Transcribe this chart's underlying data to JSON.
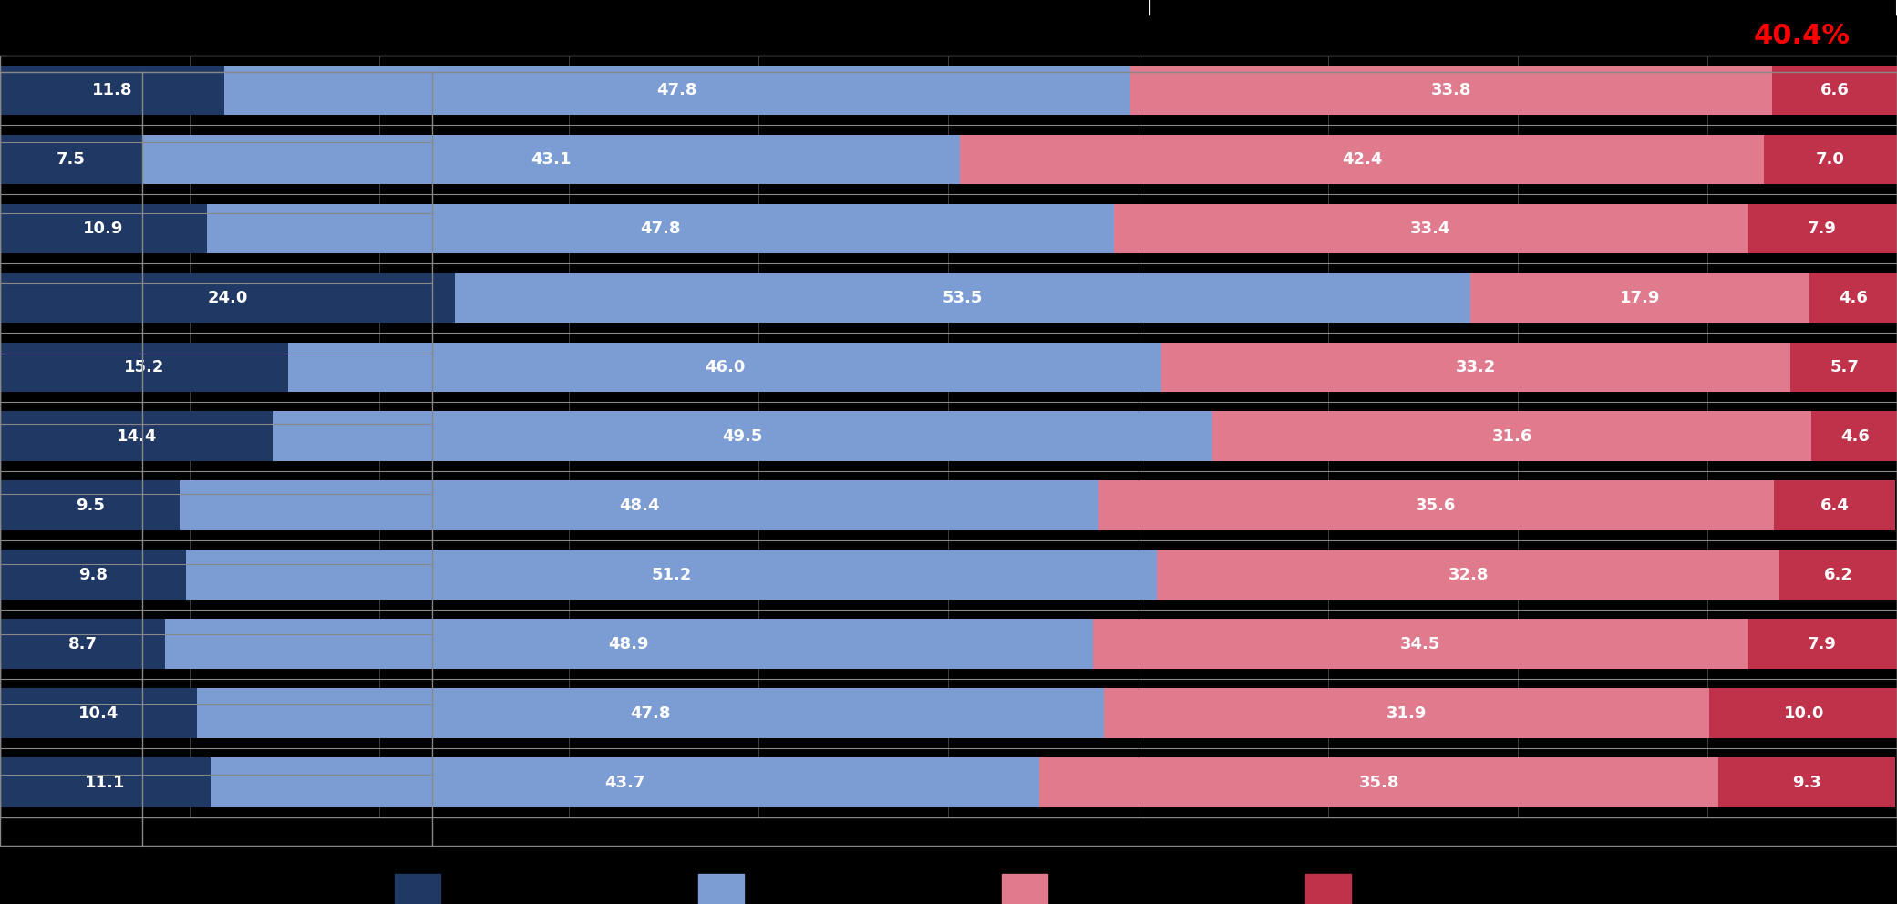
{
  "rows": [
    {
      "label1": "",
      "label2": "",
      "v1": 11.8,
      "v2": 47.8,
      "v3": 33.8,
      "v4": 6.6
    },
    {
      "label1": "",
      "label2": "",
      "v1": 7.5,
      "v2": 43.1,
      "v3": 42.4,
      "v4": 7.0
    },
    {
      "label1": "",
      "label2": "",
      "v1": 10.9,
      "v2": 47.8,
      "v3": 33.4,
      "v4": 7.9
    },
    {
      "label1": "",
      "label2": "",
      "v1": 24.0,
      "v2": 53.5,
      "v3": 17.9,
      "v4": 4.6
    },
    {
      "label1": "",
      "label2": "",
      "v1": 15.2,
      "v2": 46.0,
      "v3": 33.2,
      "v4": 5.7
    },
    {
      "label1": "",
      "label2": "",
      "v1": 14.4,
      "v2": 49.5,
      "v3": 31.6,
      "v4": 4.6
    },
    {
      "label1": "",
      "label2": "",
      "v1": 9.5,
      "v2": 48.4,
      "v3": 35.6,
      "v4": 6.4
    },
    {
      "label1": "",
      "label2": "",
      "v1": 9.8,
      "v2": 51.2,
      "v3": 32.8,
      "v4": 6.2
    },
    {
      "label1": "",
      "label2": "",
      "v1": 8.7,
      "v2": 48.9,
      "v3": 34.5,
      "v4": 7.9
    },
    {
      "label1": "",
      "label2": "",
      "v1": 10.4,
      "v2": 47.8,
      "v3": 31.9,
      "v4": 10.0
    },
    {
      "label1": "",
      "label2": "",
      "v1": 11.1,
      "v2": 43.7,
      "v3": 35.8,
      "v4": 9.3
    }
  ],
  "color1": "#1f3864",
  "color2": "#7b9dd4",
  "color3": "#e07b8e",
  "color4": "#c0324a",
  "annotation_text": "40.4%",
  "annotation_color": "#ff0000",
  "legend_labels": [
    "",
    "",
    "",
    ""
  ],
  "bg_color": "#000000",
  "bar_bg": "#000000",
  "text_color": "#ffffff",
  "grid_color": "#333333"
}
